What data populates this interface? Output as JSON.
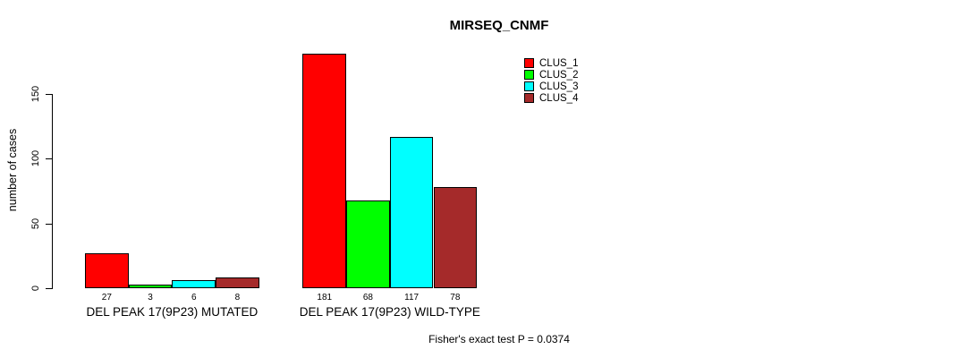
{
  "chart_data": {
    "type": "bar",
    "title": "MIRSEQ_CNMF",
    "ylabel": "number of cases",
    "xlabel": "",
    "subtitle": "Fisher's exact test P = 0.0374",
    "categories": [
      "DEL PEAK 17(9P23) MUTATED",
      "DEL PEAK 17(9P23) WILD-TYPE"
    ],
    "series": [
      {
        "name": "CLUS_1",
        "color": "#ff0000",
        "values": [
          27,
          181
        ]
      },
      {
        "name": "CLUS_2",
        "color": "#00ff00",
        "values": [
          3,
          68
        ]
      },
      {
        "name": "CLUS_3",
        "color": "#00ffff",
        "values": [
          6,
          117
        ]
      },
      {
        "name": "CLUS_4",
        "color": "#a52a2a",
        "values": [
          8,
          78
        ]
      }
    ],
    "yticks": [
      0,
      50,
      100,
      150
    ],
    "ylim": [
      0,
      185
    ],
    "grid": false,
    "legend_position": "top-right",
    "bar_value_labels": true,
    "bar_border_color": "#000000",
    "background_color": "#ffffff"
  }
}
